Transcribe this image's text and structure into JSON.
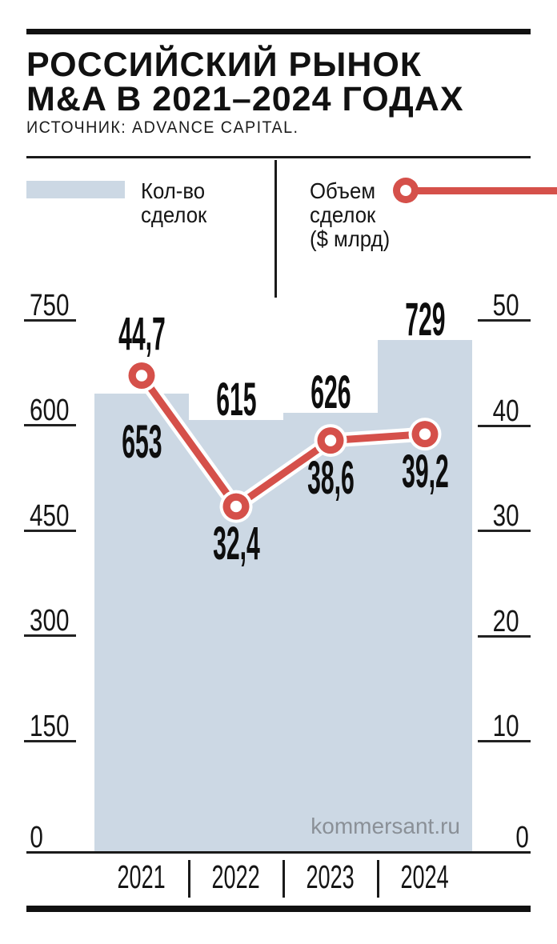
{
  "header": {
    "title_line1": "РОССИЙСКИЙ РЫНОК",
    "title_line2": "M&A В 2021–2024 ГОДАХ",
    "source": "ИСТОЧНИК: ADVANCE CAPITAL."
  },
  "legend": {
    "bars": {
      "line1": "Кол-во",
      "line2": "сделок"
    },
    "volume": {
      "line1": "Объем",
      "line2": "сделок",
      "line3": "($ млрд)"
    }
  },
  "watermark": "kommersant.ru",
  "colors": {
    "bar_fill": "#ccd8e4",
    "line_red": "#d5504a",
    "ink": "#111111",
    "watermark": "#8a9097"
  },
  "chart_data": {
    "type": "bar+line",
    "categories": [
      "2021",
      "2022",
      "2023",
      "2024"
    ],
    "series": [
      {
        "name": "Кол-во сделок",
        "type": "bar",
        "axis": "left",
        "values": [
          653,
          615,
          626,
          729
        ],
        "labels": [
          "653",
          "615",
          "626",
          "729"
        ]
      },
      {
        "name": "Объем сделок ($ млрд)",
        "type": "line",
        "axis": "right",
        "values": [
          44.7,
          32.4,
          38.6,
          39.2
        ],
        "labels": [
          "44,7",
          "32,4",
          "38,6",
          "39,2"
        ]
      }
    ],
    "left_axis": {
      "title": "Кол-во сделок",
      "ticks": [
        0,
        150,
        300,
        450,
        600,
        750
      ],
      "max": 750
    },
    "right_axis": {
      "title": "Объем сделок ($ млрд)",
      "ticks": [
        0,
        10,
        20,
        30,
        40,
        50
      ],
      "max": 50
    },
    "grid": "short tick dashes outside plot, no gridlines",
    "legend_position": "top"
  }
}
